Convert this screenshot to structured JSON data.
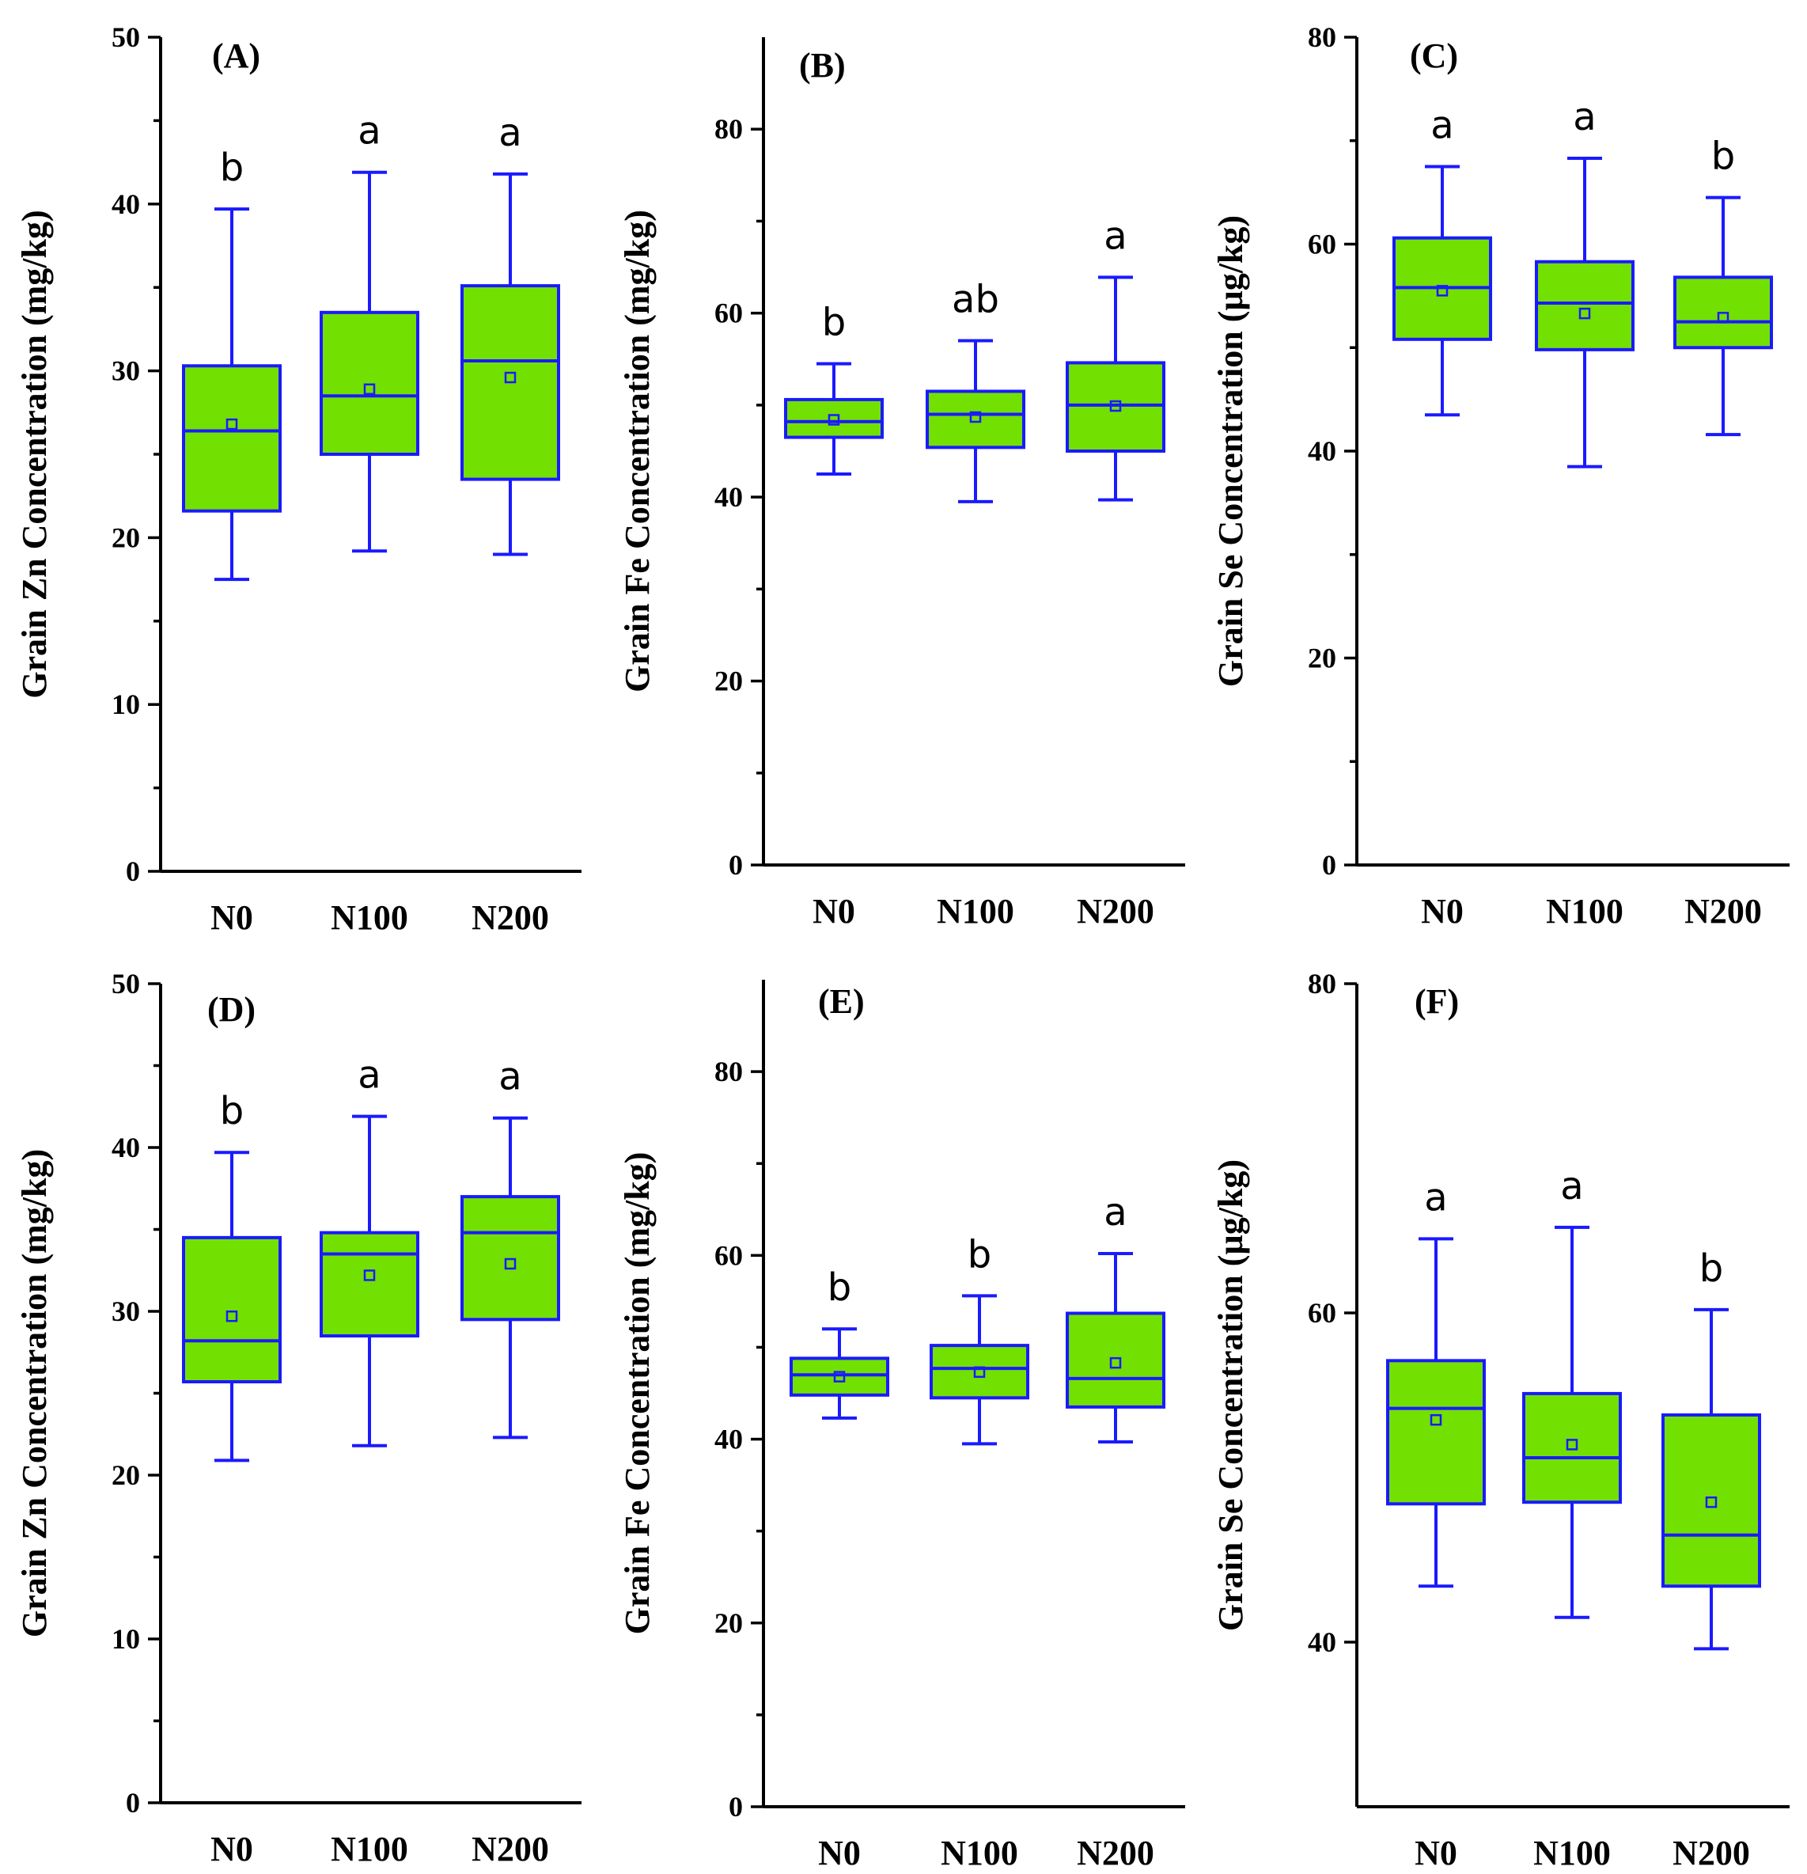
{
  "figure_colors": {
    "box_fill": "#72e000",
    "box_stroke": "#1a1aff",
    "axis": "#000000"
  },
  "chart_data": [
    {
      "type": "box",
      "panel": "(A)",
      "ylabel": "Grain Zn Concentration (mg/kg)",
      "ylim": [
        0,
        50
      ],
      "yticks": [
        0,
        10,
        20,
        30,
        40,
        50
      ],
      "categories": [
        "N0",
        "N100",
        "N200"
      ],
      "boxes": [
        {
          "min": 17.5,
          "q1": 21.6,
          "median": 26.4,
          "q3": 30.3,
          "max": 39.7,
          "mean": 26.8,
          "letter": "b"
        },
        {
          "min": 19.2,
          "q1": 25.0,
          "median": 28.5,
          "q3": 33.5,
          "max": 41.9,
          "mean": 28.9,
          "letter": "a"
        },
        {
          "min": 19.0,
          "q1": 23.5,
          "median": 30.6,
          "q3": 35.1,
          "max": 41.8,
          "mean": 29.6,
          "letter": "a"
        }
      ]
    },
    {
      "type": "box",
      "panel": "(B)",
      "ylabel": "Grain Fe Concentration (mg/kg)",
      "ylim": [
        0,
        90
      ],
      "yticks": [
        0,
        20,
        40,
        60,
        80
      ],
      "categories": [
        "N0",
        "N100",
        "N200"
      ],
      "boxes": [
        {
          "min": 42.5,
          "q1": 46.5,
          "median": 48.2,
          "q3": 50.6,
          "max": 54.5,
          "mean": 48.4,
          "letter": "b"
        },
        {
          "min": 39.5,
          "q1": 45.4,
          "median": 49.0,
          "q3": 51.5,
          "max": 57.0,
          "mean": 48.7,
          "letter": "ab"
        },
        {
          "min": 39.7,
          "q1": 45.0,
          "median": 50.0,
          "q3": 54.6,
          "max": 63.9,
          "mean": 49.9,
          "letter": "a"
        }
      ]
    },
    {
      "type": "box",
      "panel": "(C)",
      "ylabel": "Grain Se Concentration (µg/kg)",
      "ylim": [
        0,
        80
      ],
      "yticks": [
        0,
        20,
        40,
        60,
        80
      ],
      "categories": [
        "N0",
        "N100",
        "N200"
      ],
      "boxes": [
        {
          "min": 43.5,
          "q1": 50.8,
          "median": 55.8,
          "q3": 60.6,
          "max": 67.5,
          "mean": 55.5,
          "letter": "a"
        },
        {
          "min": 38.5,
          "q1": 49.8,
          "median": 54.3,
          "q3": 58.3,
          "max": 68.3,
          "mean": 53.3,
          "letter": "a"
        },
        {
          "min": 41.6,
          "q1": 50.0,
          "median": 52.5,
          "q3": 56.8,
          "max": 64.5,
          "mean": 52.9,
          "letter": "b"
        }
      ]
    },
    {
      "type": "box",
      "panel": "(D)",
      "ylabel": "Grain Zn Concentration (mg/kg)",
      "ylim": [
        0,
        50
      ],
      "yticks": [
        0,
        10,
        20,
        30,
        40,
        50
      ],
      "categories": [
        "N0",
        "N100",
        "N200"
      ],
      "boxes": [
        {
          "min": 20.9,
          "q1": 25.7,
          "median": 28.2,
          "q3": 34.5,
          "max": 39.7,
          "mean": 29.7,
          "letter": "b"
        },
        {
          "min": 21.8,
          "q1": 28.5,
          "median": 33.5,
          "q3": 34.8,
          "max": 41.9,
          "mean": 32.2,
          "letter": "a"
        },
        {
          "min": 22.3,
          "q1": 29.5,
          "median": 34.8,
          "q3": 37.0,
          "max": 41.8,
          "mean": 32.9,
          "letter": "a"
        }
      ]
    },
    {
      "type": "box",
      "panel": "(E)",
      "ylabel": "Grain Fe Concentration (mg/kg)",
      "ylim": [
        0,
        90
      ],
      "yticks": [
        0,
        20,
        40,
        60,
        80
      ],
      "categories": [
        "N0",
        "N100",
        "N200"
      ],
      "boxes": [
        {
          "min": 42.3,
          "q1": 44.8,
          "median": 47.0,
          "q3": 48.8,
          "max": 52.0,
          "mean": 46.8,
          "letter": "b"
        },
        {
          "min": 39.5,
          "q1": 44.5,
          "median": 47.7,
          "q3": 50.2,
          "max": 55.6,
          "mean": 47.3,
          "letter": "b"
        },
        {
          "min": 39.7,
          "q1": 43.5,
          "median": 46.6,
          "q3": 53.7,
          "max": 60.2,
          "mean": 48.3,
          "letter": "a"
        }
      ]
    },
    {
      "type": "box",
      "panel": "(F)",
      "ylabel": "Grain Se Concentration (µg/kg)",
      "ylim": [
        30,
        80
      ],
      "yticks": [
        40,
        60,
        80
      ],
      "categories": [
        "N0",
        "N100",
        "N200"
      ],
      "boxes": [
        {
          "min": 43.4,
          "q1": 48.4,
          "median": 54.2,
          "q3": 57.1,
          "max": 64.5,
          "mean": 53.5,
          "letter": "a"
        },
        {
          "min": 41.5,
          "q1": 48.5,
          "median": 51.2,
          "q3": 55.1,
          "max": 65.2,
          "mean": 52.0,
          "letter": "a"
        },
        {
          "min": 39.6,
          "q1": 43.4,
          "median": 46.5,
          "q3": 53.8,
          "max": 60.2,
          "mean": 48.5,
          "letter": "b"
        }
      ]
    }
  ]
}
